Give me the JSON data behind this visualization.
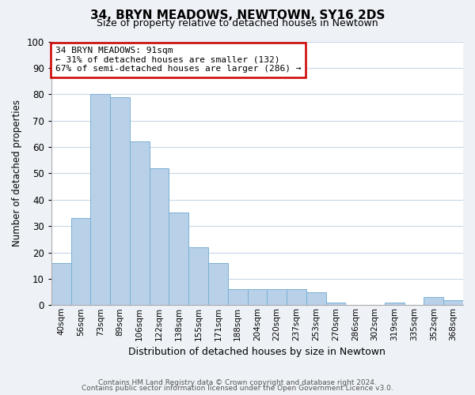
{
  "title": "34, BRYN MEADOWS, NEWTOWN, SY16 2DS",
  "subtitle": "Size of property relative to detached houses in Newtown",
  "xlabel": "Distribution of detached houses by size in Newtown",
  "ylabel": "Number of detached properties",
  "bar_labels": [
    "40sqm",
    "56sqm",
    "73sqm",
    "89sqm",
    "106sqm",
    "122sqm",
    "138sqm",
    "155sqm",
    "171sqm",
    "188sqm",
    "204sqm",
    "220sqm",
    "237sqm",
    "253sqm",
    "270sqm",
    "286sqm",
    "302sqm",
    "319sqm",
    "335sqm",
    "352sqm",
    "368sqm"
  ],
  "bar_values": [
    16,
    33,
    80,
    79,
    62,
    52,
    35,
    22,
    16,
    6,
    6,
    6,
    6,
    5,
    1,
    0,
    0,
    1,
    0,
    3,
    2
  ],
  "bar_color": "#b8d0e8",
  "bar_edge_color": "#7ab0d4",
  "annotation_text": "34 BRYN MEADOWS: 91sqm\n← 31% of detached houses are smaller (132)\n67% of semi-detached houses are larger (286) →",
  "annotation_box_color": "#ffffff",
  "annotation_box_edge": "#cc0000",
  "ylim": [
    0,
    100
  ],
  "yticks": [
    0,
    10,
    20,
    30,
    40,
    50,
    60,
    70,
    80,
    90,
    100
  ],
  "footer_line1": "Contains HM Land Registry data © Crown copyright and database right 2024.",
  "footer_line2": "Contains public sector information licensed under the Open Government Licence v3.0.",
  "background_color": "#eef2f7",
  "plot_background_color": "#ffffff",
  "grid_color": "#c8d8e8"
}
